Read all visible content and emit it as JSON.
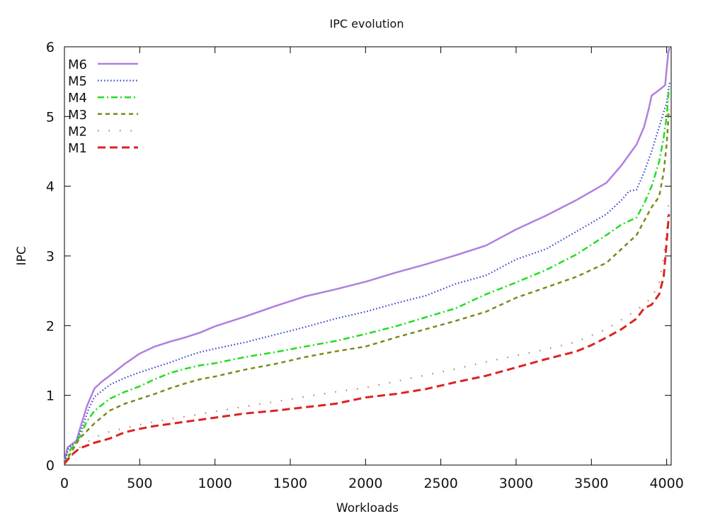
{
  "chart_data": {
    "type": "line",
    "title": "IPC evolution",
    "xlabel": "Workloads",
    "ylabel": "IPC",
    "xlim": [
      0,
      4030
    ],
    "ylim": [
      0,
      6
    ],
    "xticks": [
      0,
      500,
      1000,
      1500,
      2000,
      2500,
      3000,
      3500,
      4000
    ],
    "yticks": [
      0,
      1,
      2,
      3,
      4,
      5,
      6
    ],
    "grid": false,
    "legend_position": "top-left",
    "series": [
      {
        "name": "M6",
        "color": "#b07fe0",
        "dash": "solid",
        "points": [
          [
            0,
            0.05
          ],
          [
            20,
            0.25
          ],
          [
            50,
            0.3
          ],
          [
            80,
            0.35
          ],
          [
            100,
            0.5
          ],
          [
            150,
            0.85
          ],
          [
            200,
            1.1
          ],
          [
            250,
            1.2
          ],
          [
            300,
            1.28
          ],
          [
            400,
            1.45
          ],
          [
            500,
            1.6
          ],
          [
            600,
            1.7
          ],
          [
            700,
            1.77
          ],
          [
            800,
            1.83
          ],
          [
            900,
            1.9
          ],
          [
            1000,
            1.99
          ],
          [
            1200,
            2.13
          ],
          [
            1400,
            2.28
          ],
          [
            1600,
            2.42
          ],
          [
            1800,
            2.52
          ],
          [
            2000,
            2.63
          ],
          [
            2200,
            2.76
          ],
          [
            2400,
            2.88
          ],
          [
            2600,
            3.01
          ],
          [
            2800,
            3.15
          ],
          [
            3000,
            3.38
          ],
          [
            3200,
            3.58
          ],
          [
            3400,
            3.8
          ],
          [
            3600,
            4.05
          ],
          [
            3700,
            4.3
          ],
          [
            3800,
            4.6
          ],
          [
            3850,
            4.85
          ],
          [
            3880,
            5.1
          ],
          [
            3900,
            5.3
          ],
          [
            3950,
            5.38
          ],
          [
            3990,
            5.45
          ],
          [
            4010,
            5.9
          ],
          [
            4020,
            6.0
          ]
        ]
      },
      {
        "name": "M5",
        "color": "#3040c8",
        "dash": "dotted",
        "points": [
          [
            0,
            0.05
          ],
          [
            30,
            0.25
          ],
          [
            80,
            0.33
          ],
          [
            120,
            0.55
          ],
          [
            160,
            0.8
          ],
          [
            200,
            0.98
          ],
          [
            300,
            1.15
          ],
          [
            400,
            1.25
          ],
          [
            500,
            1.33
          ],
          [
            600,
            1.4
          ],
          [
            700,
            1.47
          ],
          [
            800,
            1.55
          ],
          [
            900,
            1.62
          ],
          [
            1000,
            1.67
          ],
          [
            1200,
            1.76
          ],
          [
            1400,
            1.87
          ],
          [
            1600,
            1.98
          ],
          [
            1800,
            2.1
          ],
          [
            2000,
            2.2
          ],
          [
            2200,
            2.32
          ],
          [
            2400,
            2.43
          ],
          [
            2600,
            2.6
          ],
          [
            2800,
            2.72
          ],
          [
            3000,
            2.95
          ],
          [
            3200,
            3.1
          ],
          [
            3400,
            3.35
          ],
          [
            3600,
            3.6
          ],
          [
            3700,
            3.8
          ],
          [
            3750,
            3.93
          ],
          [
            3800,
            3.95
          ],
          [
            3850,
            4.2
          ],
          [
            3900,
            4.5
          ],
          [
            3950,
            4.85
          ],
          [
            4000,
            5.2
          ],
          [
            4020,
            5.5
          ]
        ]
      },
      {
        "name": "M4",
        "color": "#22dd22",
        "dash": "dashdot",
        "points": [
          [
            0,
            0.02
          ],
          [
            40,
            0.22
          ],
          [
            100,
            0.4
          ],
          [
            150,
            0.63
          ],
          [
            200,
            0.78
          ],
          [
            300,
            0.95
          ],
          [
            400,
            1.05
          ],
          [
            500,
            1.13
          ],
          [
            600,
            1.23
          ],
          [
            700,
            1.32
          ],
          [
            800,
            1.38
          ],
          [
            900,
            1.43
          ],
          [
            1000,
            1.46
          ],
          [
            1200,
            1.55
          ],
          [
            1400,
            1.62
          ],
          [
            1600,
            1.7
          ],
          [
            1800,
            1.78
          ],
          [
            2000,
            1.88
          ],
          [
            2200,
            1.99
          ],
          [
            2400,
            2.12
          ],
          [
            2600,
            2.25
          ],
          [
            2800,
            2.45
          ],
          [
            3000,
            2.62
          ],
          [
            3200,
            2.8
          ],
          [
            3400,
            3.02
          ],
          [
            3600,
            3.3
          ],
          [
            3700,
            3.45
          ],
          [
            3800,
            3.55
          ],
          [
            3850,
            3.75
          ],
          [
            3900,
            4.0
          ],
          [
            3950,
            4.35
          ],
          [
            3980,
            4.7
          ],
          [
            4000,
            5.0
          ],
          [
            4015,
            5.4
          ]
        ]
      },
      {
        "name": "M3",
        "color": "#7a8a1a",
        "dash": "dashed",
        "points": [
          [
            0,
            0.02
          ],
          [
            50,
            0.2
          ],
          [
            100,
            0.38
          ],
          [
            200,
            0.6
          ],
          [
            300,
            0.78
          ],
          [
            400,
            0.88
          ],
          [
            500,
            0.95
          ],
          [
            600,
            1.02
          ],
          [
            700,
            1.1
          ],
          [
            800,
            1.17
          ],
          [
            900,
            1.23
          ],
          [
            1000,
            1.27
          ],
          [
            1200,
            1.37
          ],
          [
            1400,
            1.45
          ],
          [
            1600,
            1.55
          ],
          [
            1800,
            1.63
          ],
          [
            2000,
            1.7
          ],
          [
            2200,
            1.83
          ],
          [
            2400,
            1.95
          ],
          [
            2600,
            2.07
          ],
          [
            2800,
            2.2
          ],
          [
            3000,
            2.4
          ],
          [
            3200,
            2.55
          ],
          [
            3400,
            2.7
          ],
          [
            3600,
            2.9
          ],
          [
            3700,
            3.1
          ],
          [
            3800,
            3.3
          ],
          [
            3850,
            3.5
          ],
          [
            3900,
            3.7
          ],
          [
            3950,
            3.85
          ],
          [
            3980,
            4.2
          ],
          [
            4000,
            4.6
          ],
          [
            4015,
            5.1
          ]
        ]
      },
      {
        "name": "M2",
        "color": "#a87858",
        "dash": "sparse-dot",
        "points": [
          [
            0,
            0.02
          ],
          [
            100,
            0.25
          ],
          [
            200,
            0.4
          ],
          [
            300,
            0.48
          ],
          [
            500,
            0.58
          ],
          [
            700,
            0.66
          ],
          [
            900,
            0.73
          ],
          [
            1000,
            0.77
          ],
          [
            1200,
            0.84
          ],
          [
            1400,
            0.91
          ],
          [
            1600,
            0.98
          ],
          [
            1800,
            1.05
          ],
          [
            2000,
            1.11
          ],
          [
            2200,
            1.2
          ],
          [
            2400,
            1.29
          ],
          [
            2600,
            1.38
          ],
          [
            2800,
            1.48
          ],
          [
            3000,
            1.57
          ],
          [
            3200,
            1.66
          ],
          [
            3400,
            1.77
          ],
          [
            3600,
            1.95
          ],
          [
            3800,
            2.22
          ],
          [
            3900,
            2.4
          ],
          [
            3950,
            2.6
          ],
          [
            3980,
            3.0
          ],
          [
            4000,
            3.4
          ],
          [
            4015,
            3.8
          ]
        ]
      },
      {
        "name": "M1",
        "color": "#dd2222",
        "dash": "longdash",
        "points": [
          [
            0,
            0.02
          ],
          [
            50,
            0.15
          ],
          [
            100,
            0.24
          ],
          [
            200,
            0.32
          ],
          [
            300,
            0.38
          ],
          [
            400,
            0.47
          ],
          [
            500,
            0.52
          ],
          [
            600,
            0.56
          ],
          [
            700,
            0.59
          ],
          [
            800,
            0.62
          ],
          [
            900,
            0.65
          ],
          [
            1000,
            0.68
          ],
          [
            1200,
            0.74
          ],
          [
            1400,
            0.78
          ],
          [
            1600,
            0.83
          ],
          [
            1800,
            0.88
          ],
          [
            2000,
            0.97
          ],
          [
            2200,
            1.02
          ],
          [
            2400,
            1.09
          ],
          [
            2600,
            1.19
          ],
          [
            2800,
            1.28
          ],
          [
            3000,
            1.4
          ],
          [
            3200,
            1.52
          ],
          [
            3400,
            1.63
          ],
          [
            3500,
            1.72
          ],
          [
            3600,
            1.83
          ],
          [
            3700,
            1.95
          ],
          [
            3800,
            2.1
          ],
          [
            3850,
            2.25
          ],
          [
            3900,
            2.3
          ],
          [
            3950,
            2.45
          ],
          [
            3980,
            2.7
          ],
          [
            4000,
            3.2
          ],
          [
            4015,
            3.6
          ]
        ]
      }
    ]
  }
}
